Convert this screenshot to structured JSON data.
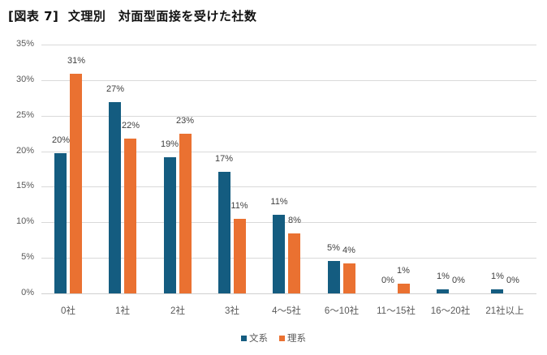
{
  "title": "[図表 7]  文理別　対面型面接を受けた社数",
  "chart_data": {
    "type": "bar",
    "title": "[図表 7]  文理別　対面型面接を受けた社数",
    "xlabel": "",
    "ylabel": "",
    "ylim": [
      0,
      35
    ],
    "y_ticks": [
      "0%",
      "5%",
      "10%",
      "15%",
      "20%",
      "25%",
      "30%",
      "35%"
    ],
    "grid": true,
    "legend_position": "bottom",
    "categories": [
      "0社",
      "1社",
      "2社",
      "3社",
      "4〜5社",
      "6〜10社",
      "11〜15社",
      "16〜20社",
      "21社以上"
    ],
    "series": [
      {
        "name": "文系",
        "color": "#145c80",
        "values": [
          20,
          27,
          19,
          17,
          11,
          5,
          0,
          1,
          1
        ],
        "heights": [
          19.7,
          26.9,
          19.1,
          17.1,
          11.1,
          4.6,
          0.0,
          0.6,
          0.6
        ],
        "labels": [
          "20%",
          "27%",
          "19%",
          "17%",
          "11%",
          "5%",
          "0%",
          "1%",
          "1%"
        ]
      },
      {
        "name": "理系",
        "color": "#ea7131",
        "values": [
          31,
          22,
          23,
          11,
          8,
          4,
          1,
          0,
          0
        ],
        "heights": [
          30.9,
          21.8,
          22.5,
          10.5,
          8.4,
          4.2,
          1.4,
          0.0,
          0.0
        ],
        "labels": [
          "31%",
          "22%",
          "23%",
          "11%",
          "8%",
          "4%",
          "1%",
          "0%",
          "0%"
        ]
      }
    ]
  },
  "legend": [
    {
      "label": "文系",
      "color": "#145c80"
    },
    {
      "label": "理系",
      "color": "#ea7131"
    }
  ]
}
